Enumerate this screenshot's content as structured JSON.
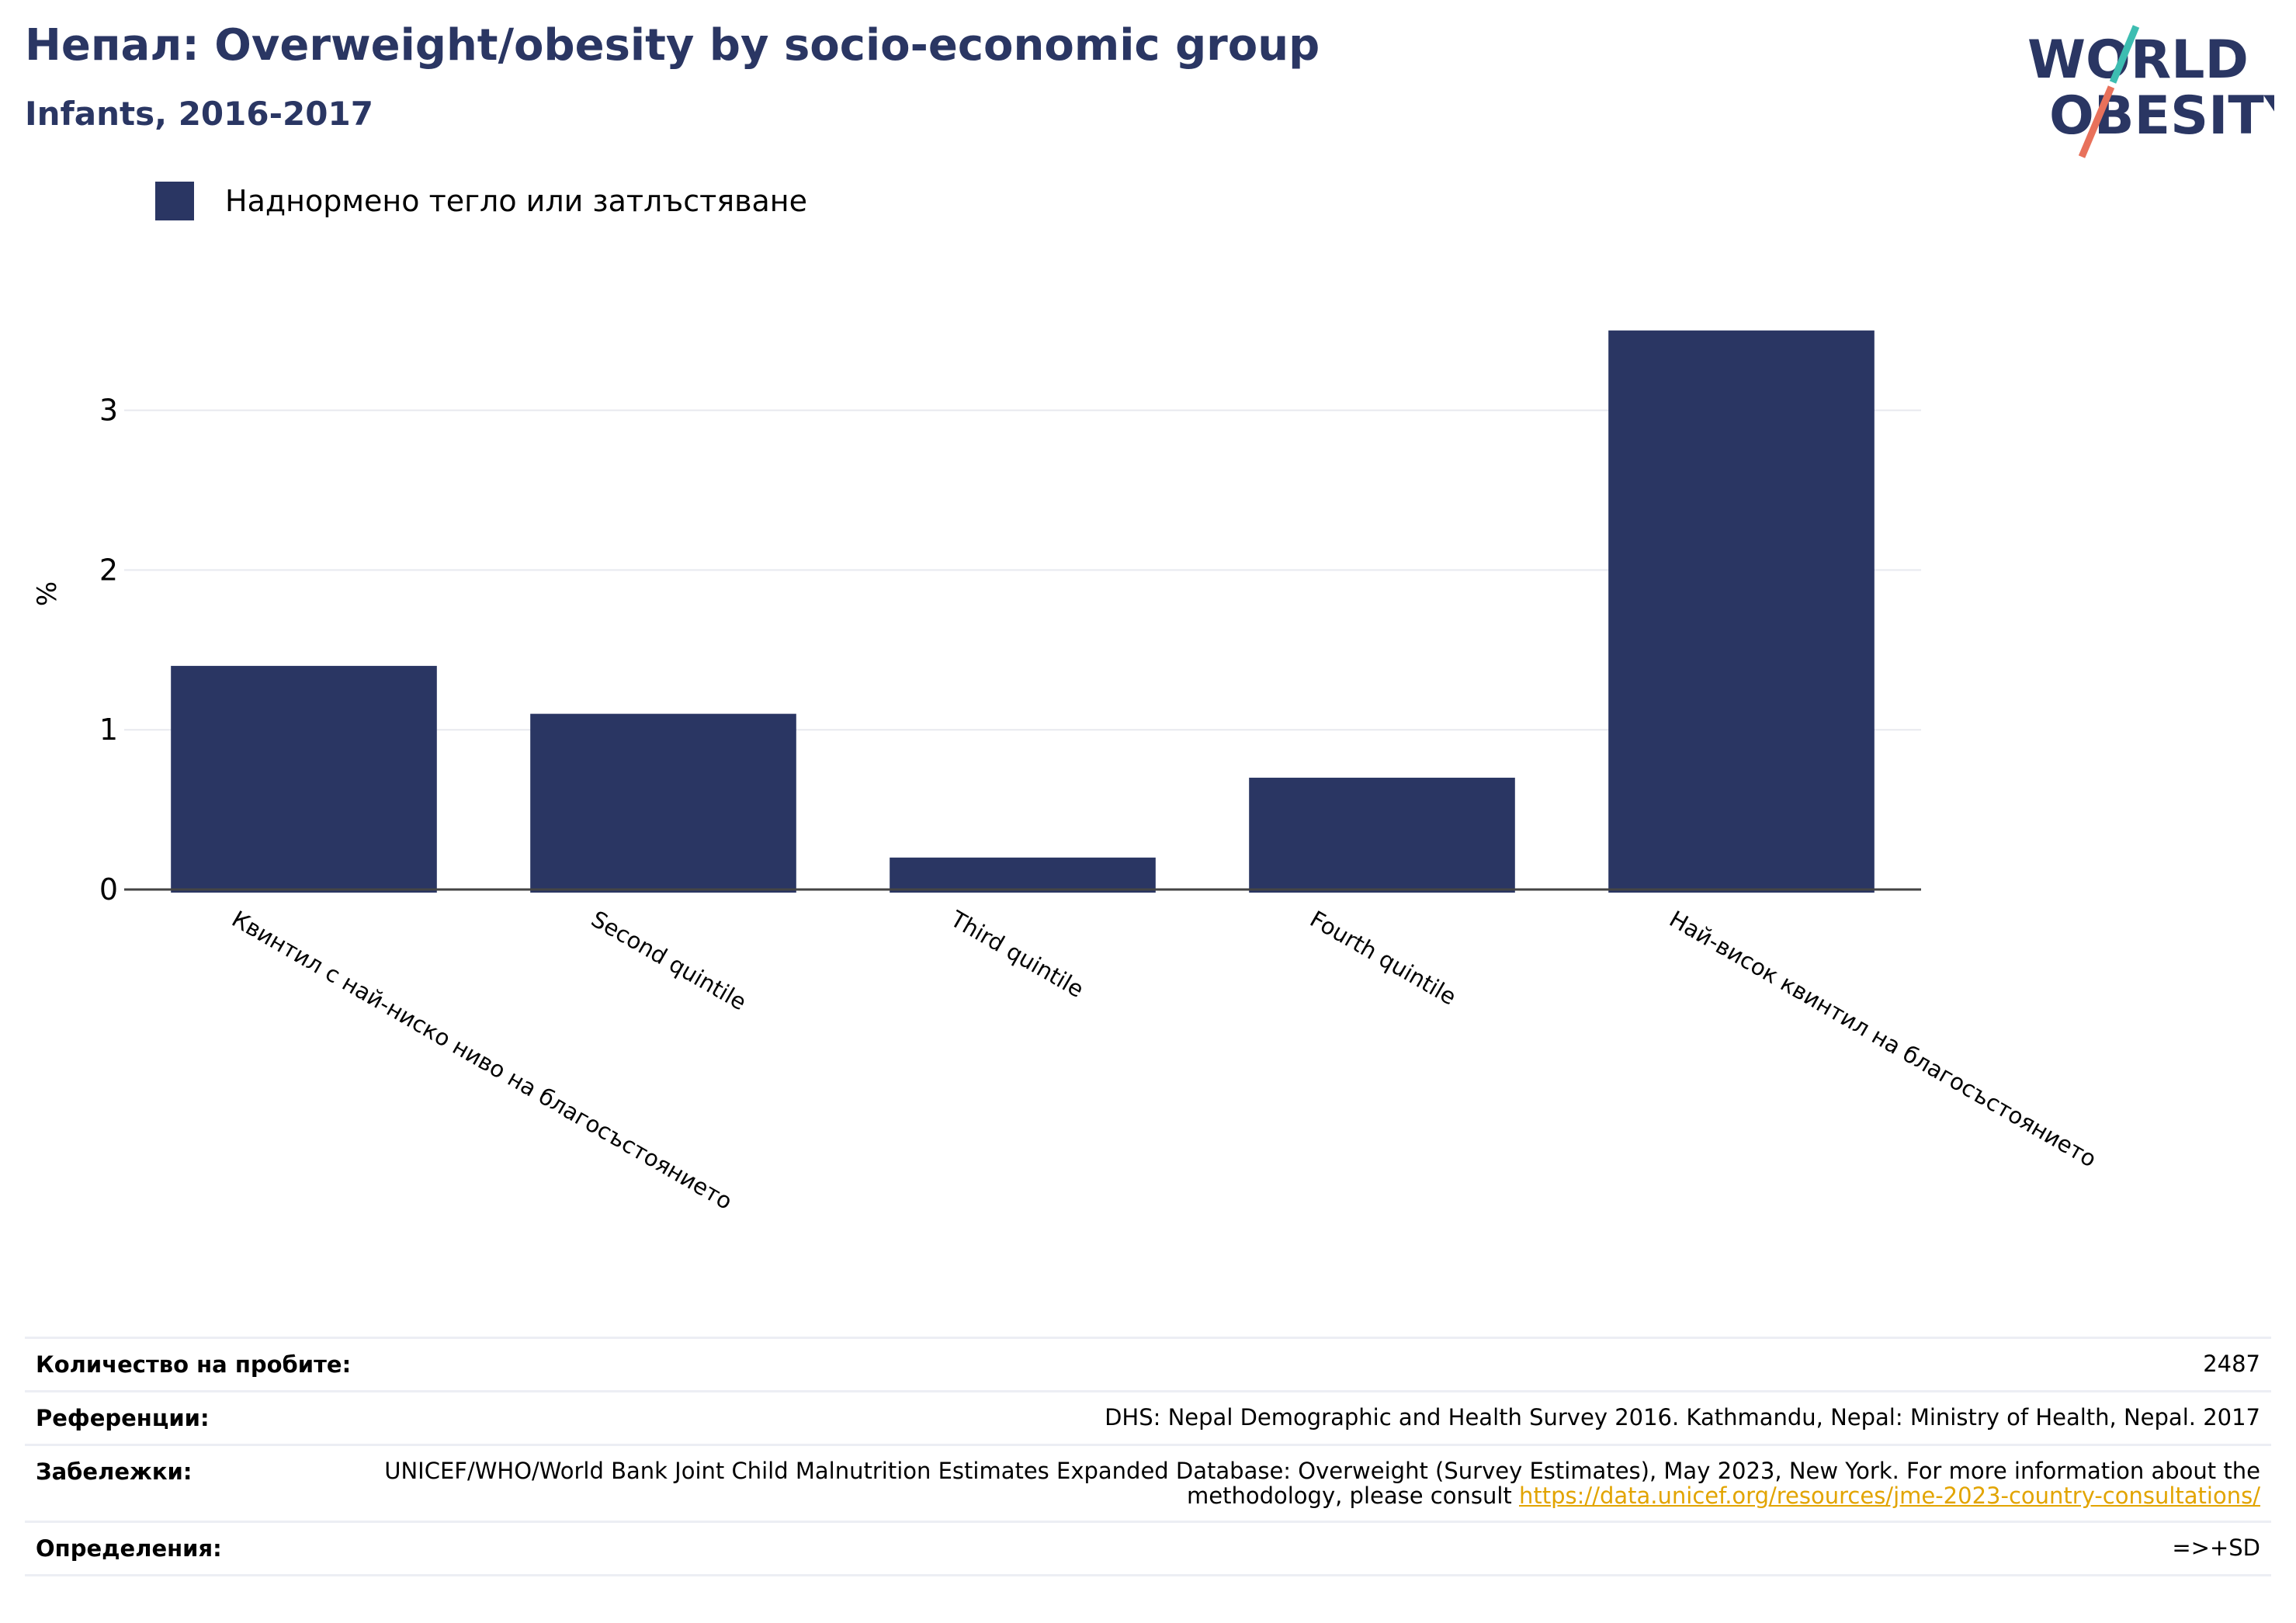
{
  "header": {
    "title": "Непал: Overweight/obesity by socio-economic group",
    "subtitle": "Infants, 2016-2017"
  },
  "logo": {
    "line1": "WORLD",
    "line2": "OBESITY",
    "accent_colors": [
      "#3dbdb1",
      "#e8715b"
    ]
  },
  "chart_data": {
    "type": "bar",
    "categories": [
      "Квинтил с най-ниско ниво на благосъстоянието",
      "Second quintile",
      "Third quintile",
      "Fourth quintile",
      "Най-висок квинтил на благосъстоянието"
    ],
    "series": [
      {
        "name": "Наднормено тегло или затлъстяване",
        "values": [
          1.4,
          1.1,
          0.2,
          0.7,
          3.5
        ],
        "color": "#2a3663"
      }
    ],
    "ylabel": "%",
    "ylim": [
      0,
      3.8
    ],
    "yticks": [
      0,
      1,
      2,
      3
    ],
    "grid": true,
    "legend": "top-left"
  },
  "info": {
    "rows": [
      {
        "key": "Количество на пробите:",
        "value": "2487"
      },
      {
        "key": "Референции:",
        "value": "DHS: Nepal Demographic and Health Survey 2016. Kathmandu, Nepal: Ministry of Health, Nepal. 2017"
      },
      {
        "key": "Забележки:",
        "value": "UNICEF/WHO/World Bank Joint Child Malnutrition Estimates Expanded Database: Overweight (Survey Estimates), May 2023, New York. For more information about the methodology, please consult ",
        "link": "https://data.unicef.org/resources/jme-2023-country-consultations/"
      },
      {
        "key": "Определения:",
        "value": "=>+SD"
      }
    ]
  }
}
